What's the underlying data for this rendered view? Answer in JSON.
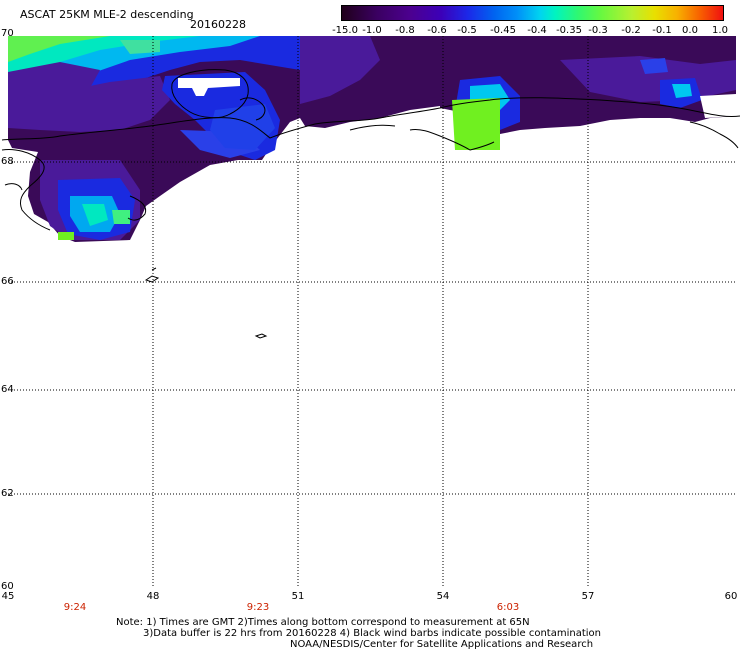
{
  "title": "ASCAT 25KM MLE-2 descending",
  "date": "20160228",
  "colorbar": {
    "ticks": [
      "-15.0",
      "-1.0",
      "-0.8",
      "-0.6",
      "-0.5",
      "-0.45",
      "-0.4",
      "-0.35",
      "-0.3",
      "-0.2",
      "-0.1",
      "0.0",
      "1.0"
    ]
  },
  "map": {
    "lat_labels": [
      "70",
      "68",
      "66",
      "64",
      "62",
      "60"
    ],
    "lon_labels": [
      "45",
      "48",
      "51",
      "54",
      "57",
      "60"
    ],
    "times": [
      "9:24",
      "9:23",
      "6:03"
    ]
  },
  "notes": {
    "line1": "Note: 1) Times are GMT 2)Times along bottom correspond to measurement at 65N",
    "line2": "3)Data buffer is 22 hrs from 20160228 4) Black wind barbs indicate possible contamination",
    "line3": "NOAA/NESDIS/Center for Satellite Applications and Research"
  },
  "colors": {
    "dark_purple": "#3a0a58",
    "violet": "#4a1a9a",
    "blue": "#1a2ae0",
    "cyan": "#00c8f0",
    "green": "#70f020",
    "lime": "#60e840"
  }
}
